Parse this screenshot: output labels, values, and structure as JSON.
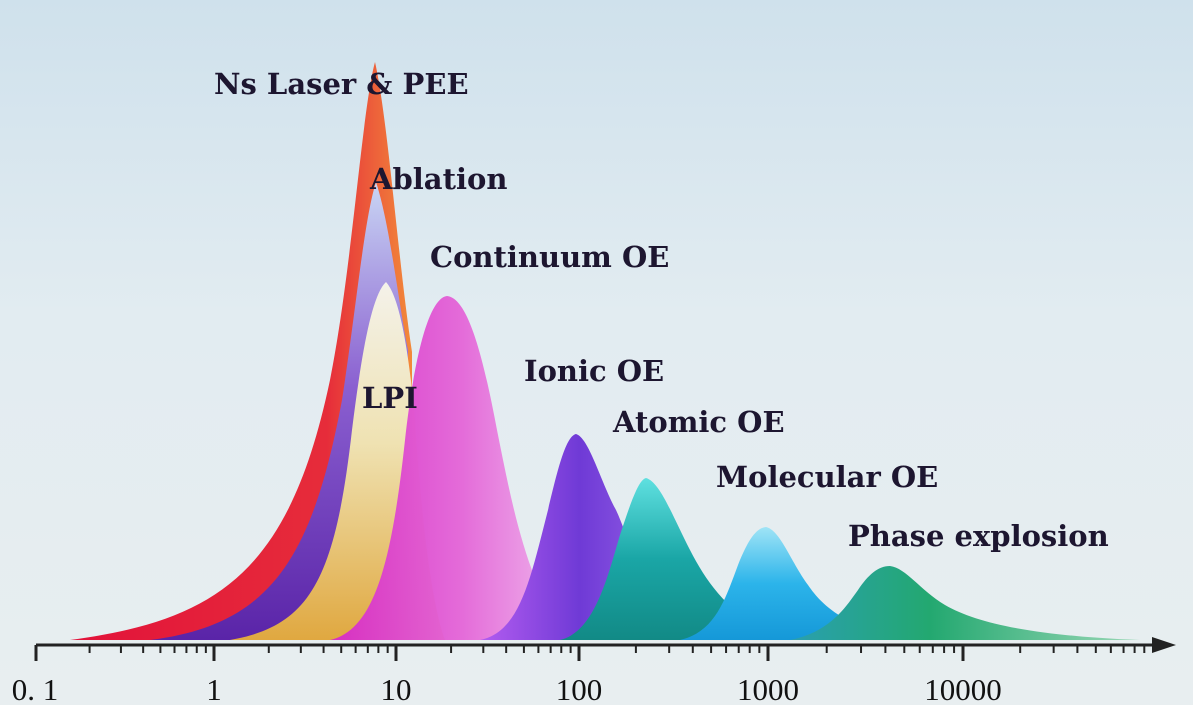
{
  "chart_data": {
    "type": "area",
    "title": "",
    "xlabel": "",
    "ylabel": "",
    "x_scale": "log",
    "xlim": [
      0.1,
      70000
    ],
    "x_ticks": [
      "0. 1",
      "1",
      "10",
      "100",
      "1000",
      "10000"
    ],
    "x_tick_values": [
      0.1,
      1,
      10,
      100,
      1000,
      10000
    ],
    "grid": false,
    "legend": "none",
    "series": [
      {
        "name": "Ns Laser & PEE",
        "peak_x": 7.5,
        "relative_height": 1.0,
        "color": "#e8344a"
      },
      {
        "name": "Ablation",
        "peak_x": 7.8,
        "relative_height": 0.86,
        "color": "#6a3bb0"
      },
      {
        "name": "LPI",
        "peak_x": 8.5,
        "relative_height": 0.72,
        "color": "#e0b050"
      },
      {
        "name": "Continuum OE",
        "peak_x": 20,
        "relative_height": 0.6,
        "color": "#e46fd6"
      },
      {
        "name": "Ionic OE",
        "peak_x": 95,
        "relative_height": 0.36,
        "color": "#7b46d8"
      },
      {
        "name": "Atomic OE",
        "peak_x": 240,
        "relative_height": 0.27,
        "color": "#1fb0b3"
      },
      {
        "name": "Molecular OE",
        "peak_x": 1000,
        "relative_height": 0.2,
        "color": "#2aaee6"
      },
      {
        "name": "Phase explosion",
        "peak_x": 4000,
        "relative_height": 0.13,
        "color": "#2aa37a"
      }
    ]
  }
}
